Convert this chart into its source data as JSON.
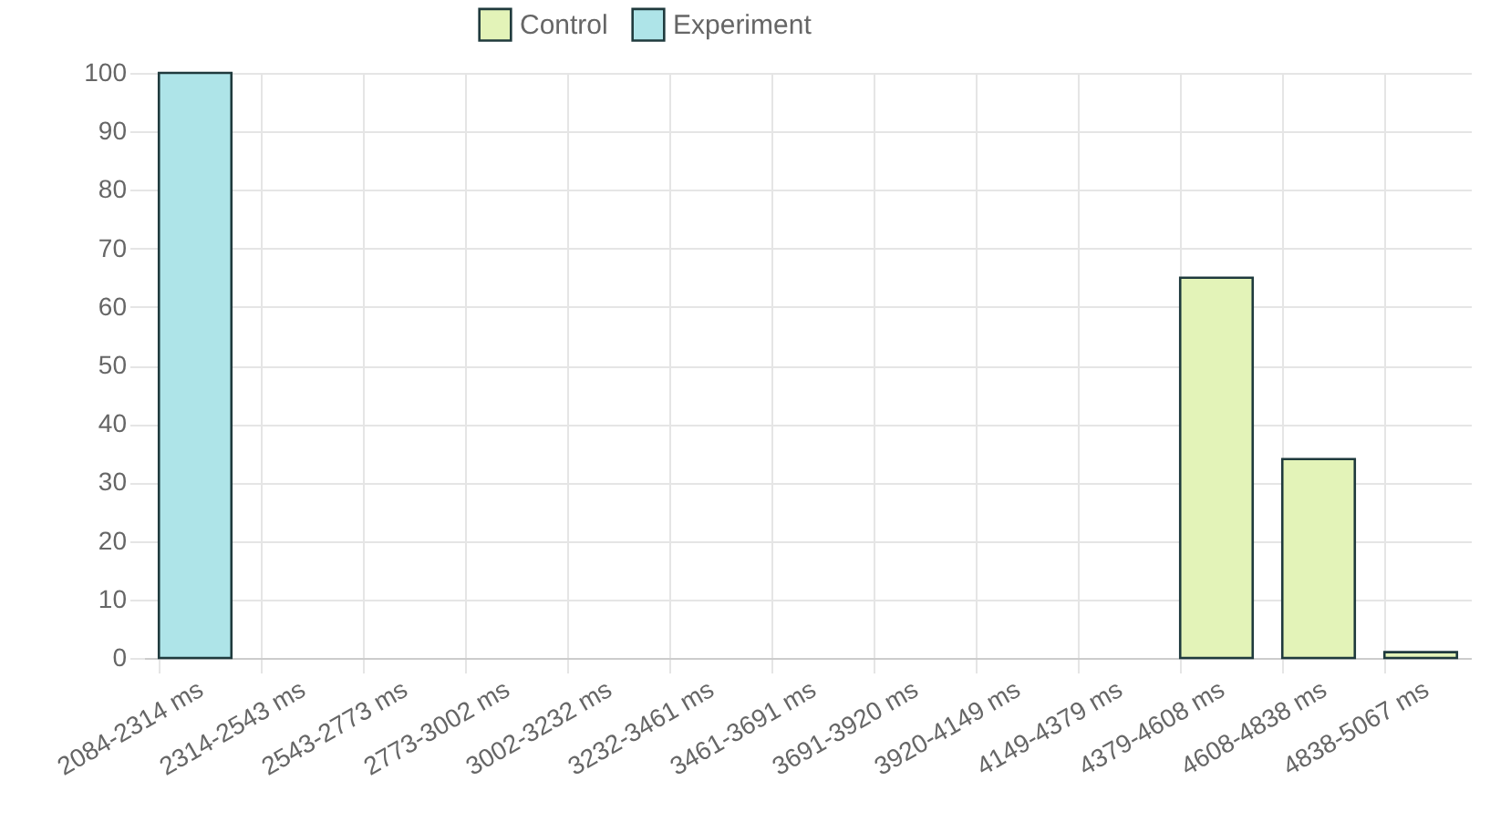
{
  "chart_data": {
    "type": "bar",
    "categories": [
      "2084-2314 ms",
      "2314-2543 ms",
      "2543-2773 ms",
      "2773-3002 ms",
      "3002-3232 ms",
      "3232-3461 ms",
      "3461-3691 ms",
      "3691-3920 ms",
      "3920-4149 ms",
      "4149-4379 ms",
      "4379-4608 ms",
      "4608-4838 ms",
      "4838-5067 ms"
    ],
    "series": [
      {
        "name": "Control",
        "color": "#e3f3b8",
        "values": [
          null,
          null,
          null,
          null,
          null,
          null,
          null,
          null,
          null,
          null,
          65,
          34,
          1
        ]
      },
      {
        "name": "Experiment",
        "color": "#aee4e8",
        "values": [
          100,
          null,
          null,
          null,
          null,
          null,
          null,
          null,
          null,
          null,
          null,
          null,
          null
        ]
      }
    ],
    "ylim": [
      0,
      100
    ],
    "yticks": [
      0,
      10,
      20,
      30,
      40,
      50,
      60,
      70,
      80,
      90,
      100
    ],
    "grid": true,
    "legend": "top"
  }
}
